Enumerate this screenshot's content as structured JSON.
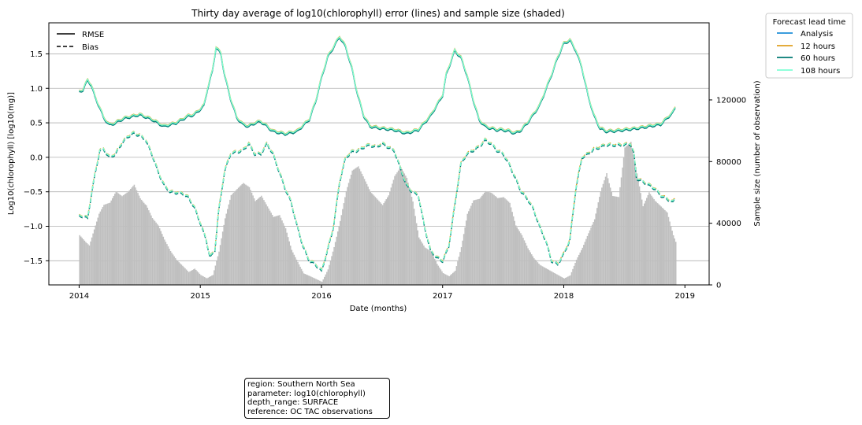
{
  "chart_data": {
    "type": "line",
    "title": "Thirty day average of log10(chlorophyll) error (lines) and sample size (shaded)",
    "xlabel": "Date (months)",
    "ylabel_left": "Log10(chlorophyll) [log10(mg)]",
    "ylabel_right": "Sample size (number of observation)",
    "xlim": [
      2013.75,
      2019.2
    ],
    "ylim_left": [
      -1.85,
      1.95
    ],
    "ylim_right": [
      0,
      170000
    ],
    "x_ticks": [
      "2014",
      "2015",
      "2016",
      "2017",
      "2018",
      "2019"
    ],
    "x_tick_values": [
      2014,
      2015,
      2016,
      2017,
      2018,
      2019
    ],
    "y_ticks_left": [
      1.5,
      1.0,
      0.5,
      0.0,
      -0.5,
      -1.0,
      -1.5
    ],
    "y_ticks_left_labels": [
      "1.5",
      "1.0",
      "0.5",
      "0.0",
      "−0.5",
      "−1.0",
      "−1.5"
    ],
    "y_ticks_right": [
      0,
      40000,
      80000,
      120000
    ],
    "y_ticks_right_labels": [
      "0",
      "40000",
      "80000",
      "120000"
    ],
    "grid": "horizontal",
    "style_legend": {
      "placement": "top-left",
      "entries": [
        {
          "label": "RMSE",
          "style": "solid"
        },
        {
          "label": "Bias",
          "style": "dashed"
        }
      ]
    },
    "lead_legend": {
      "title": "Forecast lead time",
      "placement": "outside-right",
      "entries": [
        {
          "label": "Analysis",
          "color": "#1f8fd8"
        },
        {
          "label": "12 hours",
          "color": "#e0a020"
        },
        {
          "label": "60 hours",
          "color": "#007a73"
        },
        {
          "label": "108 hours",
          "color": "#7fffd4"
        }
      ]
    },
    "rmse_series": {
      "x": [
        2014.0,
        2014.03,
        2014.07,
        2014.1,
        2014.13,
        2014.17,
        2014.2,
        2014.25,
        2014.3,
        2014.35,
        2014.4,
        2014.5,
        2014.6,
        2014.7,
        2014.8,
        2014.9,
        2014.95,
        2015.0,
        2015.03,
        2015.06,
        2015.1,
        2015.13,
        2015.17,
        2015.2,
        2015.25,
        2015.3,
        2015.35,
        2015.4,
        2015.45,
        2015.5,
        2015.55,
        2015.6,
        2015.7,
        2015.8,
        2015.9,
        2015.95,
        2016.0,
        2016.05,
        2016.1,
        2016.15,
        2016.2,
        2016.25,
        2016.3,
        2016.35,
        2016.4,
        2016.5,
        2016.6,
        2016.7,
        2016.8,
        2016.9,
        2017.0,
        2017.03,
        2017.06,
        2017.1,
        2017.15,
        2017.2,
        2017.25,
        2017.3,
        2017.35,
        2017.4,
        2017.45,
        2017.5,
        2017.55,
        2017.6,
        2017.65,
        2017.7,
        2017.8,
        2017.9,
        2017.95,
        2018.0,
        2018.05,
        2018.1,
        2018.15,
        2018.2,
        2018.25,
        2018.3,
        2018.35,
        2018.4,
        2018.5,
        2018.6,
        2018.7,
        2018.8,
        2018.9,
        2018.92
      ],
      "y": [
        0.95,
        0.98,
        1.12,
        1.05,
        0.88,
        0.72,
        0.58,
        0.47,
        0.5,
        0.55,
        0.58,
        0.62,
        0.55,
        0.45,
        0.5,
        0.6,
        0.62,
        0.7,
        0.75,
        1.0,
        1.25,
        1.6,
        1.5,
        1.2,
        0.85,
        0.58,
        0.48,
        0.45,
        0.5,
        0.52,
        0.45,
        0.38,
        0.34,
        0.38,
        0.55,
        0.8,
        1.15,
        1.45,
        1.6,
        1.75,
        1.6,
        1.3,
        0.9,
        0.6,
        0.45,
        0.42,
        0.4,
        0.35,
        0.4,
        0.6,
        0.9,
        1.2,
        1.35,
        1.55,
        1.45,
        1.2,
        0.85,
        0.55,
        0.45,
        0.42,
        0.4,
        0.4,
        0.38,
        0.35,
        0.4,
        0.5,
        0.75,
        1.2,
        1.45,
        1.65,
        1.7,
        1.55,
        1.3,
        0.9,
        0.6,
        0.42,
        0.38,
        0.38,
        0.4,
        0.42,
        0.45,
        0.48,
        0.65,
        0.72
      ]
    },
    "bias_series": {
      "x": [
        2014.0,
        2014.03,
        2014.07,
        2014.1,
        2014.13,
        2014.17,
        2014.2,
        2014.25,
        2014.3,
        2014.35,
        2014.4,
        2014.45,
        2014.5,
        2014.55,
        2014.6,
        2014.65,
        2014.7,
        2014.75,
        2014.85,
        2014.9,
        2014.95,
        2015.0,
        2015.05,
        2015.08,
        2015.12,
        2015.15,
        2015.2,
        2015.25,
        2015.3,
        2015.35,
        2015.4,
        2015.45,
        2015.5,
        2015.55,
        2015.6,
        2015.65,
        2015.7,
        2015.75,
        2015.8,
        2015.85,
        2015.9,
        2015.95,
        2016.0,
        2016.05,
        2016.1,
        2016.15,
        2016.2,
        2016.25,
        2016.3,
        2016.35,
        2016.4,
        2016.45,
        2016.5,
        2016.55,
        2016.6,
        2016.65,
        2016.7,
        2016.75,
        2016.8,
        2016.85,
        2016.9,
        2016.95,
        2017.0,
        2017.05,
        2017.1,
        2017.15,
        2017.2,
        2017.25,
        2017.3,
        2017.35,
        2017.4,
        2017.45,
        2017.5,
        2017.55,
        2017.6,
        2017.65,
        2017.7,
        2017.75,
        2017.8,
        2017.85,
        2017.9,
        2017.95,
        2018.0,
        2018.05,
        2018.1,
        2018.15,
        2018.2,
        2018.25,
        2018.3,
        2018.35,
        2018.4,
        2018.45,
        2018.5,
        2018.55,
        2018.58,
        2018.6,
        2018.65,
        2018.7,
        2018.75,
        2018.8,
        2018.85,
        2018.9,
        2018.92
      ],
      "y": [
        -0.85,
        -0.85,
        -0.88,
        -0.55,
        -0.25,
        0.1,
        0.12,
        0.0,
        0.05,
        0.2,
        0.3,
        0.35,
        0.32,
        0.25,
        0.05,
        -0.2,
        -0.4,
        -0.5,
        -0.52,
        -0.58,
        -0.72,
        -0.95,
        -1.2,
        -1.45,
        -1.35,
        -0.8,
        -0.2,
        0.05,
        0.08,
        0.1,
        0.2,
        0.05,
        0.05,
        0.2,
        0.05,
        -0.2,
        -0.45,
        -0.65,
        -1.0,
        -1.3,
        -1.5,
        -1.55,
        -1.65,
        -1.35,
        -1.0,
        -0.35,
        0.0,
        0.08,
        0.1,
        0.15,
        0.18,
        0.15,
        0.2,
        0.15,
        0.1,
        -0.15,
        -0.4,
        -0.5,
        -0.55,
        -1.0,
        -1.35,
        -1.45,
        -1.5,
        -1.3,
        -0.7,
        -0.1,
        0.05,
        0.1,
        0.15,
        0.25,
        0.2,
        0.1,
        0.05,
        -0.1,
        -0.3,
        -0.5,
        -0.6,
        -0.75,
        -1.0,
        -1.2,
        -1.5,
        -1.55,
        -1.4,
        -1.2,
        -0.45,
        0.0,
        0.05,
        0.12,
        0.15,
        0.18,
        0.18,
        0.18,
        0.18,
        0.2,
        0.05,
        -0.3,
        -0.35,
        -0.4,
        -0.45,
        -0.55,
        -0.6,
        -0.65,
        -0.6
      ]
    },
    "sample_size": {
      "x": [
        2014.0,
        2014.05,
        2014.08,
        2014.12,
        2014.16,
        2014.2,
        2014.25,
        2014.3,
        2014.35,
        2014.4,
        2014.45,
        2014.5,
        2014.55,
        2014.6,
        2014.65,
        2014.7,
        2014.75,
        2014.8,
        2014.85,
        2014.9,
        2014.95,
        2015.0,
        2015.05,
        2015.1,
        2015.15,
        2015.2,
        2015.25,
        2015.3,
        2015.35,
        2015.4,
        2015.45,
        2015.5,
        2015.55,
        2015.6,
        2015.65,
        2015.7,
        2015.75,
        2015.8,
        2015.85,
        2015.9,
        2015.95,
        2016.0,
        2016.05,
        2016.1,
        2016.15,
        2016.2,
        2016.25,
        2016.3,
        2016.35,
        2016.4,
        2016.45,
        2016.5,
        2016.55,
        2016.6,
        2016.65,
        2016.7,
        2016.75,
        2016.8,
        2016.85,
        2016.9,
        2016.95,
        2017.0,
        2017.05,
        2017.1,
        2017.15,
        2017.2,
        2017.25,
        2017.3,
        2017.35,
        2017.4,
        2017.45,
        2017.5,
        2017.55,
        2017.6,
        2017.65,
        2017.7,
        2017.75,
        2017.8,
        2017.85,
        2017.9,
        2017.95,
        2018.0,
        2018.05,
        2018.1,
        2018.15,
        2018.2,
        2018.25,
        2018.3,
        2018.35,
        2018.4,
        2018.45,
        2018.5,
        2018.55,
        2018.6,
        2018.65,
        2018.7,
        2018.75,
        2018.8,
        2018.85,
        2018.9,
        2018.92
      ],
      "y": [
        30000,
        26000,
        24000,
        34000,
        44000,
        50000,
        52000,
        60000,
        58000,
        62000,
        68000,
        60000,
        56000,
        46000,
        40000,
        30000,
        22000,
        16000,
        12000,
        8000,
        10000,
        6000,
        4000,
        6000,
        20000,
        40000,
        54000,
        58000,
        62000,
        60000,
        52000,
        56000,
        50000,
        44000,
        46000,
        38000,
        24000,
        16000,
        8000,
        6000,
        4000,
        2000,
        10000,
        24000,
        40000,
        58000,
        70000,
        72000,
        64000,
        56000,
        52000,
        48000,
        54000,
        66000,
        72000,
        66000,
        52000,
        30000,
        24000,
        22000,
        14000,
        8000,
        6000,
        10000,
        26000,
        48000,
        56000,
        56000,
        60000,
        58000,
        54000,
        54000,
        50000,
        36000,
        30000,
        22000,
        16000,
        12000,
        10000,
        8000,
        6000,
        4000,
        6000,
        16000,
        24000,
        34000,
        44000,
        64000,
        78000,
        62000,
        60000,
        92000,
        94000,
        72000,
        50000,
        58000,
        52000,
        48000,
        44000,
        30000,
        26000
      ]
    }
  },
  "info_box": {
    "lines": [
      "region: Southern North Sea",
      "parameter: log10(chlorophyll)",
      "depth_range: SURFACE",
      "reference: OC TAC observations"
    ]
  }
}
